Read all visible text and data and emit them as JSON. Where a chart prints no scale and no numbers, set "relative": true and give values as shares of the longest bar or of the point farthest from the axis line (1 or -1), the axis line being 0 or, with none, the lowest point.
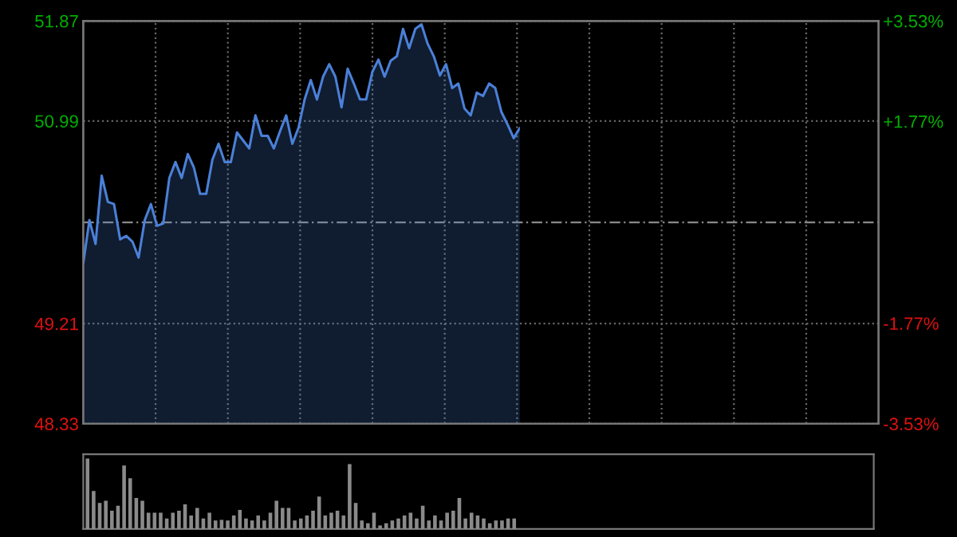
{
  "chart_data": [
    {
      "type": "area",
      "categories": [
        null,
        null,
        null,
        null,
        null,
        null,
        null,
        null,
        null,
        null,
        null,
        null,
        null,
        null,
        null,
        null,
        null,
        null,
        null,
        null,
        null,
        null,
        null,
        null,
        null,
        null,
        null,
        null,
        null,
        null,
        null,
        null,
        null,
        null,
        null,
        null,
        null,
        null,
        null,
        null,
        null,
        null,
        null,
        null,
        null,
        null,
        null,
        null,
        null,
        null,
        null,
        null,
        null,
        null,
        null,
        null,
        null,
        null,
        null,
        null,
        null,
        null,
        null,
        null,
        null,
        null,
        null,
        null,
        null,
        null,
        null,
        null
      ],
      "series": [
        {
          "color": "#4a80d8",
          "values": [
            49.74,
            50.12,
            49.91,
            50.51,
            50.28,
            50.26,
            49.95,
            49.98,
            49.93,
            49.79,
            50.12,
            50.26,
            50.07,
            50.09,
            50.49,
            50.63,
            50.49,
            50.7,
            50.58,
            50.35,
            50.35,
            50.65,
            50.79,
            50.63,
            50.63,
            50.89,
            50.82,
            50.75,
            51.04,
            50.86,
            50.86,
            50.75,
            50.9,
            51.04,
            50.79,
            50.93,
            51.18,
            51.35,
            51.18,
            51.38,
            51.49,
            51.38,
            51.11,
            51.45,
            51.32,
            51.18,
            51.18,
            51.42,
            51.53,
            51.38,
            51.52,
            51.56,
            51.8,
            51.63,
            51.8,
            51.84,
            51.67,
            51.56,
            51.39,
            51.49,
            51.28,
            51.32,
            51.1,
            51.04,
            51.24,
            51.21,
            51.32,
            51.28,
            51.07,
            50.96,
            50.84,
            50.93
          ]
        }
      ],
      "ylim": [
        48.33,
        51.87
      ],
      "yticks": [
        48.33,
        49.21,
        50.99,
        51.87
      ],
      "y2lim": [
        -3.53,
        3.53
      ],
      "y2ticks": [
        {
          "value": -3.53,
          "label": "-3.53%"
        },
        {
          "value": -1.77,
          "label": "-1.77%"
        },
        {
          "value": 1.77,
          "label": "+1.77%"
        },
        {
          "value": 3.53,
          "label": "+3.53%"
        }
      ],
      "ref_lines": [
        {
          "axis": "y",
          "value": 50.1,
          "color": "#888888",
          "line_style": "dashed"
        }
      ],
      "grid": true
    },
    {
      "type": "bar",
      "relative": true,
      "categories": [
        null,
        null,
        null,
        null,
        null,
        null,
        null,
        null,
        null,
        null,
        null,
        null,
        null,
        null,
        null,
        null,
        null,
        null,
        null,
        null,
        null,
        null,
        null,
        null,
        null,
        null,
        null,
        null,
        null,
        null,
        null,
        null,
        null,
        null,
        null,
        null,
        null,
        null,
        null,
        null,
        null,
        null,
        null,
        null,
        null,
        null,
        null,
        null,
        null,
        null,
        null,
        null,
        null,
        null,
        null,
        null,
        null,
        null,
        null,
        null,
        null,
        null,
        null,
        null,
        null,
        null,
        null,
        null,
        null,
        null,
        null
      ],
      "series": [
        {
          "color": "#8a8a8a",
          "values": [
            1.0,
            0.54,
            0.37,
            0.4,
            0.26,
            0.33,
            0.9,
            0.72,
            0.44,
            0.4,
            0.23,
            0.23,
            0.23,
            0.15,
            0.23,
            0.26,
            0.35,
            0.19,
            0.3,
            0.15,
            0.23,
            0.12,
            0.13,
            0.12,
            0.19,
            0.27,
            0.15,
            0.12,
            0.19,
            0.12,
            0.23,
            0.4,
            0.3,
            0.3,
            0.12,
            0.15,
            0.19,
            0.26,
            0.46,
            0.19,
            0.23,
            0.26,
            0.19,
            0.92,
            0.37,
            0.12,
            0.08,
            0.23,
            0.05,
            0.08,
            0.12,
            0.15,
            0.19,
            0.23,
            0.15,
            0.33,
            0.12,
            0.19,
            0.12,
            0.23,
            0.26,
            0.44,
            0.15,
            0.23,
            0.19,
            0.15,
            0.08,
            0.12,
            0.12,
            0.15,
            0.15
          ]
        }
      ]
    }
  ]
}
